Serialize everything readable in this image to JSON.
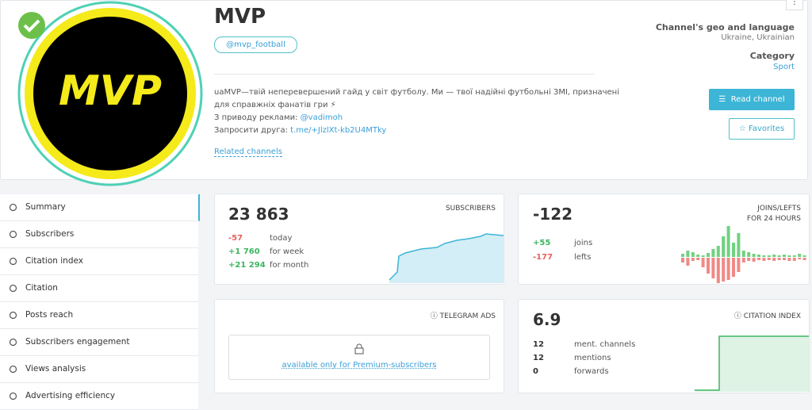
{
  "header": {
    "title": "MVP",
    "handle": "@mvp_football",
    "description": [
      "uaMVP—твій неперевершений гайд у світ футболу. Ми — твої надійні футбольні ЗМІ, призначені",
      "для справжніх фанатів гри ⚡"
    ],
    "ads_prefix": "З приводу реклами: ",
    "ads_link": "@vadimoh",
    "invite_prefix": "Запросити друга: ",
    "invite_link": "t.me/+JlzlXt-kb2U4MTky",
    "related": "Related channels",
    "geo_label": "Channel's geo and language",
    "geo": "Ukraine, Ukrainian",
    "category_label": "Category",
    "category": "Sport",
    "read_button": "Read channel",
    "favorites_button": "Favorites"
  },
  "sidebar": [
    "Summary",
    "Subscribers",
    "Citation index",
    "Citation",
    "Posts reach",
    "Subscribers engagement",
    "Views analysis",
    "Advertising efficiency"
  ],
  "cards": {
    "subscribers": {
      "value": "23 863",
      "label": "SUBSCRIBERS",
      "stats": [
        {
          "value": "-57",
          "label": "today"
        },
        {
          "value": "+1 760",
          "label": "for week"
        },
        {
          "value": "+21 294",
          "label": "for month"
        }
      ]
    },
    "joins": {
      "value": "-122",
      "label": [
        "JOINS/LEFTS",
        "FOR 24 HOURS"
      ],
      "stats": [
        {
          "value": "+55",
          "label": "joins"
        },
        {
          "value": "-177",
          "label": "lefts"
        }
      ]
    },
    "ads": {
      "label": "TELEGRAM ADS",
      "text": "available only for Premium-subscribers"
    },
    "citation": {
      "value": "6.9",
      "label": "CITATION INDEX",
      "stats": [
        {
          "value": "12",
          "label": "ment. channels"
        },
        {
          "value": "12",
          "label": "mentions"
        },
        {
          "value": "0",
          "label": "forwards"
        }
      ]
    }
  }
}
